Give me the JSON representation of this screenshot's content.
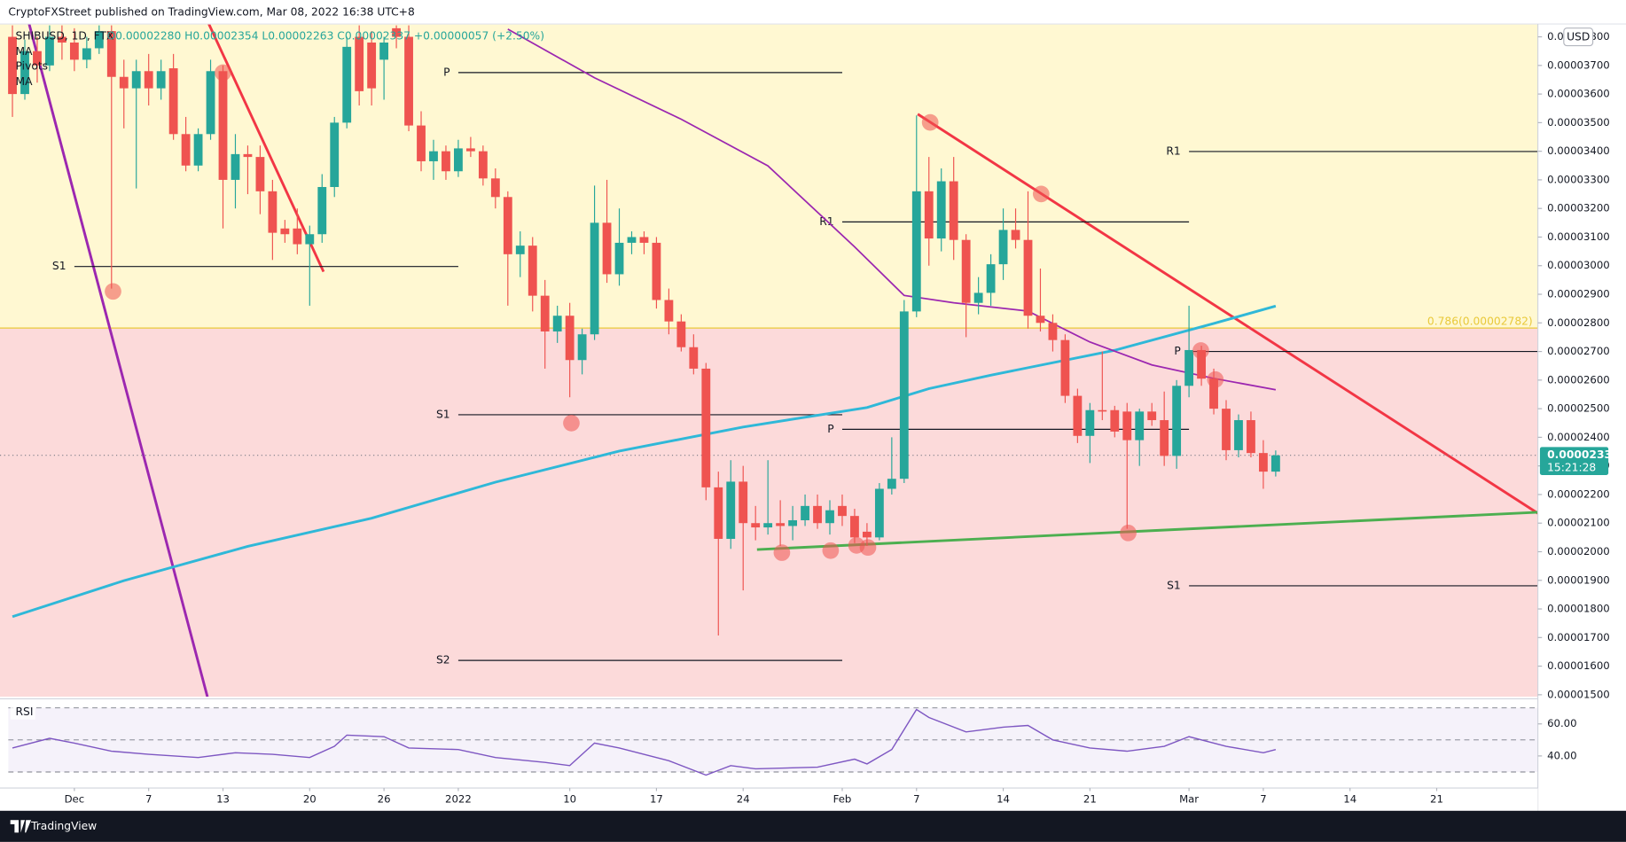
{
  "header": "CryptoFXStreet published on TradingView.com, Mar 08, 2022 16:38 UTC+8",
  "footer": "TradingView",
  "chart_data": {
    "type": "candlestick",
    "symbol": "SHIBUSD, 1D, FTX",
    "ohlc_text": "O0.00002280 H0.00002354 L0.00002263 C0.00002337 +0.00000057 (+2.50%)",
    "indicators": [
      "MA",
      "Pivots",
      "MA"
    ],
    "currency": "USD",
    "up_color": "#26a69a",
    "down_color": "#ef5350",
    "x": [
      "Nov 26",
      "Nov 27",
      "Nov 28",
      "Nov 29",
      "Nov 30",
      "Dec 1",
      "Dec 2",
      "Dec 3",
      "Dec 4",
      "Dec 5",
      "Dec 6",
      "Dec 7",
      "Dec 8",
      "Dec 9",
      "Dec 10",
      "Dec 11",
      "Dec 12",
      "Dec 13",
      "Dec 14",
      "Dec 15",
      "Dec 16",
      "Dec 17",
      "Dec 18",
      "Dec 19",
      "Dec 20",
      "Dec 21",
      "Dec 22",
      "Dec 23",
      "Dec 24",
      "Dec 25",
      "Dec 26",
      "Dec 27",
      "Dec 28",
      "Dec 29",
      "Dec 30",
      "Dec 31",
      "Jan 1",
      "Jan 2",
      "Jan 3",
      "Jan 4",
      "Jan 5",
      "Jan 6",
      "Jan 7",
      "Jan 8",
      "Jan 9",
      "Jan 10",
      "Jan 11",
      "Jan 12",
      "Jan 13",
      "Jan 14",
      "Jan 15",
      "Jan 16",
      "Jan 17",
      "Jan 18",
      "Jan 19",
      "Jan 20",
      "Jan 21",
      "Jan 22",
      "Jan 23",
      "Jan 24",
      "Jan 25",
      "Jan 26",
      "Jan 27",
      "Jan 28",
      "Jan 29",
      "Jan 30",
      "Jan 31",
      "Feb 1",
      "Feb 2",
      "Feb 3",
      "Feb 4",
      "Feb 5",
      "Feb 6",
      "Feb 7",
      "Feb 8",
      "Feb 9",
      "Feb 10",
      "Feb 11",
      "Feb 12",
      "Feb 13",
      "Feb 14",
      "Feb 15",
      "Feb 16",
      "Feb 17",
      "Feb 18",
      "Feb 19",
      "Feb 20",
      "Feb 21",
      "Feb 22",
      "Feb 23",
      "Feb 24",
      "Feb 25",
      "Feb 26",
      "Feb 27",
      "Feb 28",
      "Mar 1",
      "Mar 2",
      "Mar 3",
      "Mar 4",
      "Mar 5",
      "Mar 6",
      "Mar 7",
      "Mar 8"
    ],
    "open": [
      3.8e-05,
      3.6e-05,
      3.75e-05,
      3.7e-05,
      3.8e-05,
      3.78e-05,
      3.72e-05,
      3.76e-05,
      3.82e-05,
      3.66e-05,
      3.62e-05,
      3.68e-05,
      3.62e-05,
      3.69e-05,
      3.46e-05,
      3.35e-05,
      3.46e-05,
      3.68e-05,
      3.3e-05,
      3.39e-05,
      3.38e-05,
      3.26e-05,
      3.13e-05,
      3.13e-05,
      3.075e-05,
      3.11e-05,
      3.275e-05,
      3.5e-05,
      3.8e-05,
      3.78e-05,
      3.72e-05,
      3.83e-05,
      3.8e-05,
      3.49e-05,
      3.365e-05,
      3.4e-05,
      3.33e-05,
      3.41e-05,
      3.4e-05,
      3.305e-05,
      3.24e-05,
      3.04e-05,
      3.07e-05,
      2.895e-05,
      2.77e-05,
      2.825e-05,
      2.67e-05,
      2.76e-05,
      3.15e-05,
      2.97e-05,
      3.08e-05,
      3.1e-05,
      3.08e-05,
      2.88e-05,
      2.805e-05,
      2.715e-05,
      2.64e-05,
      2.225e-05,
      2.045e-05,
      2.245e-05,
      2.1e-05,
      2.085e-05,
      2.1e-05,
      2.09e-05,
      2.11e-05,
      2.16e-05,
      2.1e-05,
      2.16e-05,
      2.125e-05,
      2.07e-05,
      2.05e-05,
      2.22e-05,
      2.255e-05,
      2.84e-05,
      3.26e-05,
      3.095e-05,
      3.295e-05,
      3.09e-05,
      2.87e-05,
      2.905e-05,
      3.005e-05,
      3.125e-05,
      3.09e-05,
      2.825e-05,
      2.8e-05,
      2.74e-05,
      2.545e-05,
      2.405e-05,
      2.495e-05,
      2.495e-05,
      2.49e-05,
      2.39e-05,
      2.49e-05,
      2.46e-05,
      2.335e-05,
      2.58e-05,
      2.705e-05,
      2.605e-05,
      2.5e-05,
      2.355e-05,
      2.46e-05,
      2.345e-05,
      2.28e-05
    ],
    "high": [
      3.84e-05,
      3.79e-05,
      3.8e-05,
      3.84e-05,
      3.84e-05,
      3.83e-05,
      3.8e-05,
      3.84e-05,
      3.84e-05,
      3.72e-05,
      3.72e-05,
      3.74e-05,
      3.72e-05,
      3.74e-05,
      3.52e-05,
      3.48e-05,
      3.72e-05,
      3.7e-05,
      3.46e-05,
      3.42e-05,
      3.42e-05,
      3.3e-05,
      3.16e-05,
      3.2e-05,
      3.14e-05,
      3.32e-05,
      3.52e-05,
      3.8e-05,
      3.84e-05,
      3.82e-05,
      3.8e-05,
      3.84e-05,
      3.84e-05,
      3.54e-05,
      3.44e-05,
      3.42e-05,
      3.44e-05,
      3.45e-05,
      3.42e-05,
      3.34e-05,
      3.26e-05,
      3.12e-05,
      3.1e-05,
      2.95e-05,
      2.86e-05,
      2.87e-05,
      2.78e-05,
      3.28e-05,
      3.3e-05,
      3.2e-05,
      3.12e-05,
      3.12e-05,
      3.1e-05,
      2.92e-05,
      2.83e-05,
      2.76e-05,
      2.66e-05,
      2.28e-05,
      2.32e-05,
      2.3e-05,
      2.16e-05,
      2.32e-05,
      2.18e-05,
      2.16e-05,
      2.2e-05,
      2.2e-05,
      2.18e-05,
      2.2e-05,
      2.15e-05,
      2.1e-05,
      2.24e-05,
      2.4e-05,
      2.88e-05,
      3.525e-05,
      3.38e-05,
      3.34e-05,
      3.38e-05,
      3.11e-05,
      2.96e-05,
      3.04e-05,
      3.2e-05,
      3.2e-05,
      3.26e-05,
      2.99e-05,
      2.83e-05,
      2.76e-05,
      2.57e-05,
      2.52e-05,
      2.7e-05,
      2.51e-05,
      2.52e-05,
      2.5e-05,
      2.52e-05,
      2.56e-05,
      2.6e-05,
      2.86e-05,
      2.72e-05,
      2.64e-05,
      2.53e-05,
      2.48e-05,
      2.49e-05,
      2.39e-05,
      2.354e-05
    ],
    "low": [
      3.52e-05,
      3.58e-05,
      3.64e-05,
      3.68e-05,
      3.72e-05,
      3.68e-05,
      3.69e-05,
      3.74e-05,
      2.92e-05,
      3.48e-05,
      3.27e-05,
      3.56e-05,
      3.58e-05,
      3.44e-05,
      3.33e-05,
      3.33e-05,
      3.44e-05,
      3.13e-05,
      3.2e-05,
      3.25e-05,
      3.18e-05,
      3.02e-05,
      3.08e-05,
      3.04e-05,
      2.86e-05,
      3.08e-05,
      3.24e-05,
      3.48e-05,
      3.56e-05,
      3.56e-05,
      3.58e-05,
      3.76e-05,
      3.47e-05,
      3.33e-05,
      3.3e-05,
      3.3e-05,
      3.31e-05,
      3.38e-05,
      3.28e-05,
      3.2e-05,
      2.86e-05,
      2.96e-05,
      2.84e-05,
      2.64e-05,
      2.73e-05,
      2.54e-05,
      2.62e-05,
      2.74e-05,
      2.94e-05,
      2.93e-05,
      3.04e-05,
      3.04e-05,
      2.85e-05,
      2.76e-05,
      2.7e-05,
      2.62e-05,
      2.18e-05,
      1.707e-05,
      2.01e-05,
      1.865e-05,
      2.04e-05,
      2.06e-05,
      2.02e-05,
      2.04e-05,
      2.09e-05,
      2.08e-05,
      2.06e-05,
      2.09e-05,
      2.03e-05,
      2.02e-05,
      2.04e-05,
      2.2e-05,
      2.24e-05,
      2.82e-05,
      3e-05,
      3.05e-05,
      3.02e-05,
      2.75e-05,
      2.83e-05,
      2.86e-05,
      2.95e-05,
      3.06e-05,
      2.78e-05,
      2.77e-05,
      2.7e-05,
      2.52e-05,
      2.38e-05,
      2.31e-05,
      2.46e-05,
      2.4e-05,
      2.08e-05,
      2.3e-05,
      2.44e-05,
      2.3e-05,
      2.29e-05,
      2.54e-05,
      2.58e-05,
      2.48e-05,
      2.32e-05,
      2.33e-05,
      2.33e-05,
      2.22e-05,
      2.263e-05
    ],
    "close": [
      3.6e-05,
      3.75e-05,
      3.7e-05,
      3.8e-05,
      3.78e-05,
      3.72e-05,
      3.76e-05,
      3.82e-05,
      3.66e-05,
      3.62e-05,
      3.68e-05,
      3.62e-05,
      3.68e-05,
      3.46e-05,
      3.35e-05,
      3.46e-05,
      3.68e-05,
      3.3e-05,
      3.39e-05,
      3.38e-05,
      3.26e-05,
      3.115e-05,
      3.11e-05,
      3.075e-05,
      3.11e-05,
      3.275e-05,
      3.5e-05,
      3.765e-05,
      3.61e-05,
      3.62e-05,
      3.78e-05,
      3.8e-05,
      3.49e-05,
      3.365e-05,
      3.4e-05,
      3.33e-05,
      3.41e-05,
      3.4e-05,
      3.305e-05,
      3.24e-05,
      3.04e-05,
      3.07e-05,
      2.895e-05,
      2.77e-05,
      2.825e-05,
      2.67e-05,
      2.76e-05,
      3.15e-05,
      2.97e-05,
      3.08e-05,
      3.1e-05,
      3.08e-05,
      2.88e-05,
      2.805e-05,
      2.715e-05,
      2.64e-05,
      2.225e-05,
      2.045e-05,
      2.245e-05,
      2.1e-05,
      2.085e-05,
      2.1e-05,
      2.09e-05,
      2.11e-05,
      2.16e-05,
      2.1e-05,
      2.145e-05,
      2.125e-05,
      2.05e-05,
      2.05e-05,
      2.22e-05,
      2.255e-05,
      2.84e-05,
      3.26e-05,
      3.095e-05,
      3.295e-05,
      3.09e-05,
      2.87e-05,
      2.905e-05,
      3.005e-05,
      3.125e-05,
      3.09e-05,
      2.825e-05,
      2.8e-05,
      2.74e-05,
      2.545e-05,
      2.405e-05,
      2.495e-05,
      2.49e-05,
      2.42e-05,
      2.39e-05,
      2.49e-05,
      2.46e-05,
      2.335e-05,
      2.58e-05,
      2.705e-05,
      2.605e-05,
      2.5e-05,
      2.355e-05,
      2.46e-05,
      2.345e-05,
      2.28e-05,
      2.337e-05
    ],
    "xlim": [
      "Nov 26",
      "Mar 29"
    ],
    "xticks": [
      {
        "value": "Dec 1",
        "label": "Dec"
      },
      {
        "value": "Dec 7",
        "label": "7"
      },
      {
        "value": "Dec 13",
        "label": "13"
      },
      {
        "value": "Dec 20",
        "label": "20"
      },
      {
        "value": "Dec 26",
        "label": "26"
      },
      {
        "value": "Jan 1",
        "label": "2022"
      },
      {
        "value": "Jan 10",
        "label": "10"
      },
      {
        "value": "Jan 17",
        "label": "17"
      },
      {
        "value": "Jan 24",
        "label": "24"
      },
      {
        "value": "Feb 1",
        "label": "Feb"
      },
      {
        "value": "Feb 7",
        "label": "7"
      },
      {
        "value": "Feb 14",
        "label": "14"
      },
      {
        "value": "Feb 21",
        "label": "21"
      },
      {
        "value": "Mar 1",
        "label": "Mar"
      },
      {
        "value": "Mar 7",
        "label": "7"
      },
      {
        "value": "Mar 14",
        "label": "14"
      },
      {
        "value": "Mar 21",
        "label": "21"
      }
    ],
    "ylim": [
      1.493e-05,
      3.845e-05
    ],
    "yticks": [
      {
        "value": 1.5e-05,
        "label": "0.00001500"
      },
      {
        "value": 1.6e-05,
        "label": "0.00001600"
      },
      {
        "value": 1.7e-05,
        "label": "0.00001700"
      },
      {
        "value": 1.8e-05,
        "label": "0.00001800"
      },
      {
        "value": 1.9e-05,
        "label": "0.00001900"
      },
      {
        "value": 2e-05,
        "label": "0.00002000"
      },
      {
        "value": 2.1e-05,
        "label": "0.00002100"
      },
      {
        "value": 2.2e-05,
        "label": "0.00002200"
      },
      {
        "value": 2.3e-05,
        "label": "0.00002300"
      },
      {
        "value": 2.4e-05,
        "label": "0.00002400"
      },
      {
        "value": 2.5e-05,
        "label": "0.00002500"
      },
      {
        "value": 2.6e-05,
        "label": "0.00002600"
      },
      {
        "value": 2.7e-05,
        "label": "0.00002700"
      },
      {
        "value": 2.8e-05,
        "label": "0.00002800"
      },
      {
        "value": 2.9e-05,
        "label": "0.00002900"
      },
      {
        "value": 3e-05,
        "label": "0.00003000"
      },
      {
        "value": 3.1e-05,
        "label": "0.00003100"
      },
      {
        "value": 3.2e-05,
        "label": "0.00003200"
      },
      {
        "value": 3.3e-05,
        "label": "0.00003300"
      },
      {
        "value": 3.4e-05,
        "label": "0.00003400"
      },
      {
        "value": 3.5e-05,
        "label": "0.00003500"
      },
      {
        "value": 3.6e-05,
        "label": "0.00003600"
      },
      {
        "value": 3.7e-05,
        "label": "0.00003700"
      },
      {
        "value": 3.8e-05,
        "label": "0.00003800"
      }
    ],
    "last_price": {
      "value": 2.337e-05,
      "label": "0.00002337",
      "countdown": "15:21:28",
      "color": "#26a69a"
    },
    "fib": {
      "value": 2.782e-05,
      "label": "0.786(0.00002782)",
      "color": "#e9c93a"
    },
    "zones": {
      "above_color": "#fff8d2",
      "below_color": "#fcdada"
    },
    "moving_averages": [
      {
        "color": "#2fb8d8",
        "x": [
          "Nov 26",
          "Dec 5",
          "Dec 15",
          "Dec 25",
          "Jan 4",
          "Jan 14",
          "Jan 24",
          "Feb 3",
          "Feb 8",
          "Feb 13",
          "Feb 23",
          "Mar 3",
          "Mar 8"
        ],
        "values": [
          1.773e-05,
          1.899e-05,
          2.019e-05,
          2.117e-05,
          2.243e-05,
          2.352e-05,
          2.436e-05,
          2.504e-05,
          2.57e-05,
          2.617e-05,
          2.704e-05,
          2.798e-05,
          2.859e-05
        ]
      },
      {
        "color": "#9c27b0",
        "x": [
          "Jan 5",
          "Jan 12",
          "Jan 19",
          "Jan 26",
          "Feb 2",
          "Feb 6",
          "Feb 10",
          "Feb 16",
          "Feb 21",
          "Feb 26",
          "Mar 3",
          "Mar 8"
        ],
        "values": [
          3.827e-05,
          3.657e-05,
          3.512e-05,
          3.349e-05,
          3.066e-05,
          2.896e-05,
          2.87e-05,
          2.841e-05,
          2.733e-05,
          2.653e-05,
          2.606e-05,
          2.566e-05
        ]
      }
    ],
    "pivots": [
      {
        "label": "S1",
        "value": 2.997e-05,
        "from": "Dec 1",
        "to": "Jan 1"
      },
      {
        "label": "P",
        "value": 3.675e-05,
        "from": "Jan 1",
        "to": "Feb 1"
      },
      {
        "label": "S1",
        "value": 2.479e-05,
        "from": "Jan 1",
        "to": "Feb 1"
      },
      {
        "label": "S2",
        "value": 1.62e-05,
        "from": "Jan 1",
        "to": "Feb 1"
      },
      {
        "label": "R1",
        "value": 3.153e-05,
        "from": "Feb 1",
        "to": "Mar 1"
      },
      {
        "label": "P",
        "value": 2.428e-05,
        "from": "Feb 1",
        "to": "Mar 1"
      },
      {
        "label": "R1",
        "value": 3.399e-05,
        "from": "Mar 1",
        "to": "Apr 1"
      },
      {
        "label": "P",
        "value": 2.7e-05,
        "from": "Mar 1",
        "to": "Apr 1"
      },
      {
        "label": "S1",
        "value": 1.881e-05,
        "from": "Mar 1",
        "to": "Apr 1"
      }
    ],
    "rsi": {
      "name": "RSI",
      "color": "#7e57c2",
      "x": [
        "Nov 26",
        "Nov 29",
        "Dec 1",
        "Dec 4",
        "Dec 7",
        "Dec 11",
        "Dec 14",
        "Dec 17",
        "Dec 20",
        "Dec 22",
        "Dec 23",
        "Dec 26",
        "Dec 28",
        "Jan 1",
        "Jan 4",
        "Jan 8",
        "Jan 10",
        "Jan 12",
        "Jan 14",
        "Jan 18",
        "Jan 21",
        "Jan 23",
        "Jan 25",
        "Jan 30",
        "Feb 2",
        "Feb 3",
        "Feb 5",
        "Feb 7",
        "Feb 8",
        "Feb 11",
        "Feb 14",
        "Feb 16",
        "Feb 18",
        "Feb 21",
        "Feb 24",
        "Feb 27",
        "Mar 1",
        "Mar 4",
        "Mar 7",
        "Mar 8"
      ],
      "values": [
        45,
        51,
        48,
        43,
        41,
        39,
        42,
        41,
        39,
        46,
        53,
        52,
        45,
        44,
        39,
        36,
        34,
        48,
        45,
        37,
        28,
        34,
        32,
        33,
        38,
        35,
        44,
        69,
        64,
        55,
        58,
        59,
        50,
        45,
        43,
        46,
        52,
        46,
        42,
        44
      ],
      "ylim": [
        20,
        75
      ],
      "yticks": [
        {
          "value": 60,
          "label": "60.00"
        },
        {
          "value": 40,
          "label": "40.00"
        }
      ],
      "levels": [
        70,
        50,
        30
      ]
    }
  }
}
